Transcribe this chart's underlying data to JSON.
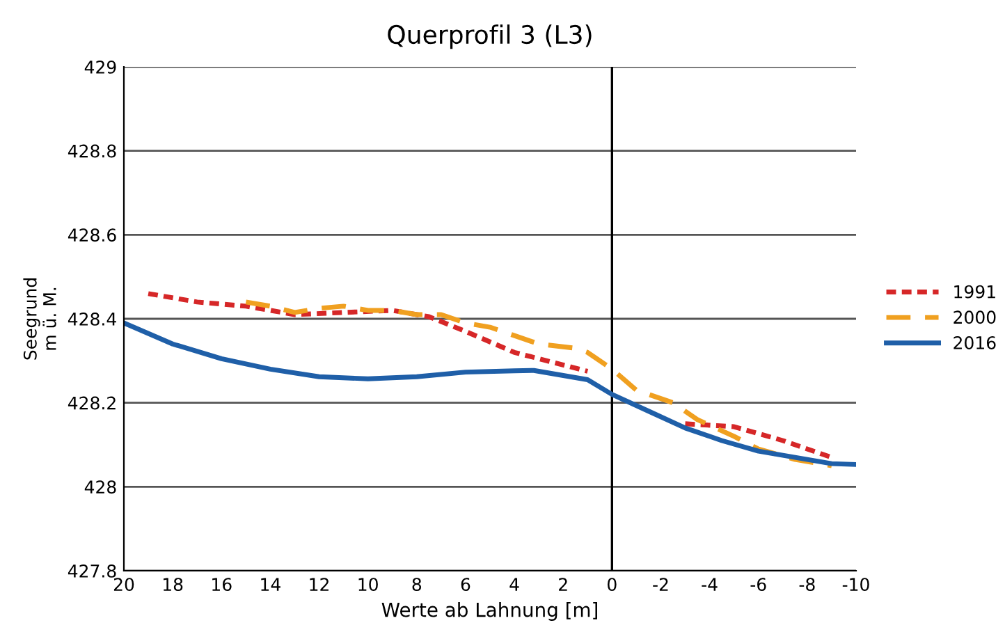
{
  "chart_data": {
    "type": "line",
    "title": "Querprofil 3 (L3)",
    "xlabel": "Werte ab Lahnung [m]",
    "ylabel": "Seegrund\nm ü. M.",
    "xlim": [
      20,
      -10
    ],
    "xticks": [
      20,
      18,
      16,
      14,
      12,
      10,
      8,
      6,
      4,
      2,
      0,
      {
        "value": -2,
        "label": "-2"
      },
      {
        "value": -4,
        "label": "-4"
      },
      {
        "value": -6,
        "label": "-6"
      },
      {
        "value": -8,
        "label": "-8"
      },
      {
        "value": -10,
        "label": "-10"
      }
    ],
    "ylim": [
      427.8,
      429
    ],
    "yticks": [
      427.8,
      428,
      428.2,
      428.4,
      428.6,
      428.8,
      429
    ],
    "grid": "y",
    "legend": "right",
    "ref_lines": [
      {
        "axis": "x",
        "value": 0,
        "color": "#000000"
      }
    ],
    "series": [
      {
        "name": "1991",
        "color": "#d62728",
        "line_style": "dotted",
        "x": [
          19,
          17,
          15,
          13,
          11,
          9,
          7.5,
          6,
          4,
          2,
          1,
          -1,
          -3,
          -5,
          -7,
          -9
        ],
        "values": [
          428.46,
          428.44,
          428.43,
          428.41,
          428.415,
          428.42,
          428.405,
          428.37,
          428.32,
          428.29,
          428.275,
          null,
          428.15,
          428.143,
          428.11,
          428.07
        ]
      },
      {
        "name": "2000",
        "color": "#f0a020",
        "line_style": "dashed",
        "x": [
          15,
          14,
          13,
          12,
          11,
          10,
          9,
          8,
          7,
          6,
          5,
          4,
          3,
          1.5,
          1,
          0,
          -1,
          -2.5,
          -3.5,
          -5,
          -6,
          -7.5,
          -9
        ],
        "values": [
          428.44,
          428.43,
          428.415,
          428.425,
          428.43,
          428.42,
          428.42,
          428.41,
          428.41,
          428.39,
          428.38,
          428.36,
          428.34,
          428.33,
          428.32,
          428.28,
          428.23,
          428.2,
          428.16,
          428.12,
          428.09,
          428.065,
          428.05
        ]
      },
      {
        "name": "2016",
        "color": "#1f5fa8",
        "line_style": "solid",
        "x": [
          20,
          18,
          16,
          14,
          12,
          10,
          8,
          6,
          4,
          3.2,
          1,
          0,
          -1.5,
          -3,
          -4.5,
          -6,
          -8,
          -9,
          -10
        ],
        "values": [
          428.39,
          428.34,
          428.305,
          428.28,
          428.262,
          428.257,
          428.262,
          428.273,
          428.276,
          428.277,
          428.255,
          428.22,
          428.18,
          428.14,
          428.11,
          428.085,
          428.065,
          428.055,
          428.053
        ]
      }
    ]
  }
}
